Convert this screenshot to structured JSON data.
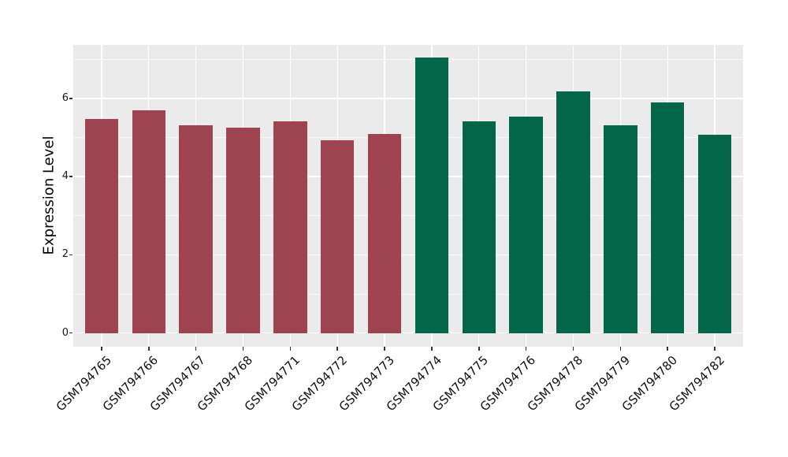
{
  "chart_data": {
    "type": "bar",
    "title": "",
    "xlabel": "",
    "ylabel": "Expression Level",
    "categories": [
      "GSM794765",
      "GSM794766",
      "GSM794767",
      "GSM794768",
      "GSM794771",
      "GSM794772",
      "GSM794773",
      "GSM794774",
      "GSM794775",
      "GSM794776",
      "GSM794778",
      "GSM794779",
      "GSM794780",
      "GSM794782"
    ],
    "values": [
      5.48,
      5.7,
      5.32,
      5.25,
      5.42,
      4.93,
      5.09,
      7.05,
      5.42,
      5.53,
      6.18,
      5.31,
      5.9,
      5.08
    ],
    "bar_colors": [
      "#9E4352",
      "#9E4352",
      "#9E4352",
      "#9E4352",
      "#9E4352",
      "#9E4352",
      "#9E4352",
      "#036649",
      "#036649",
      "#036649",
      "#036649",
      "#036649",
      "#036649",
      "#036649"
    ],
    "ylim": [
      -0.35,
      7.37
    ],
    "yticks": [
      0,
      2,
      4,
      6
    ],
    "minor_yticks": [
      1,
      3,
      5,
      7
    ],
    "grid": true,
    "legend_position": "none",
    "panel_background": "#EBEBEB",
    "gridline_color": "#FFFFFF",
    "axis_text_color": "#1a1a1a",
    "tick_mark_color": "#333333",
    "x_label_rotation_deg": 45
  }
}
